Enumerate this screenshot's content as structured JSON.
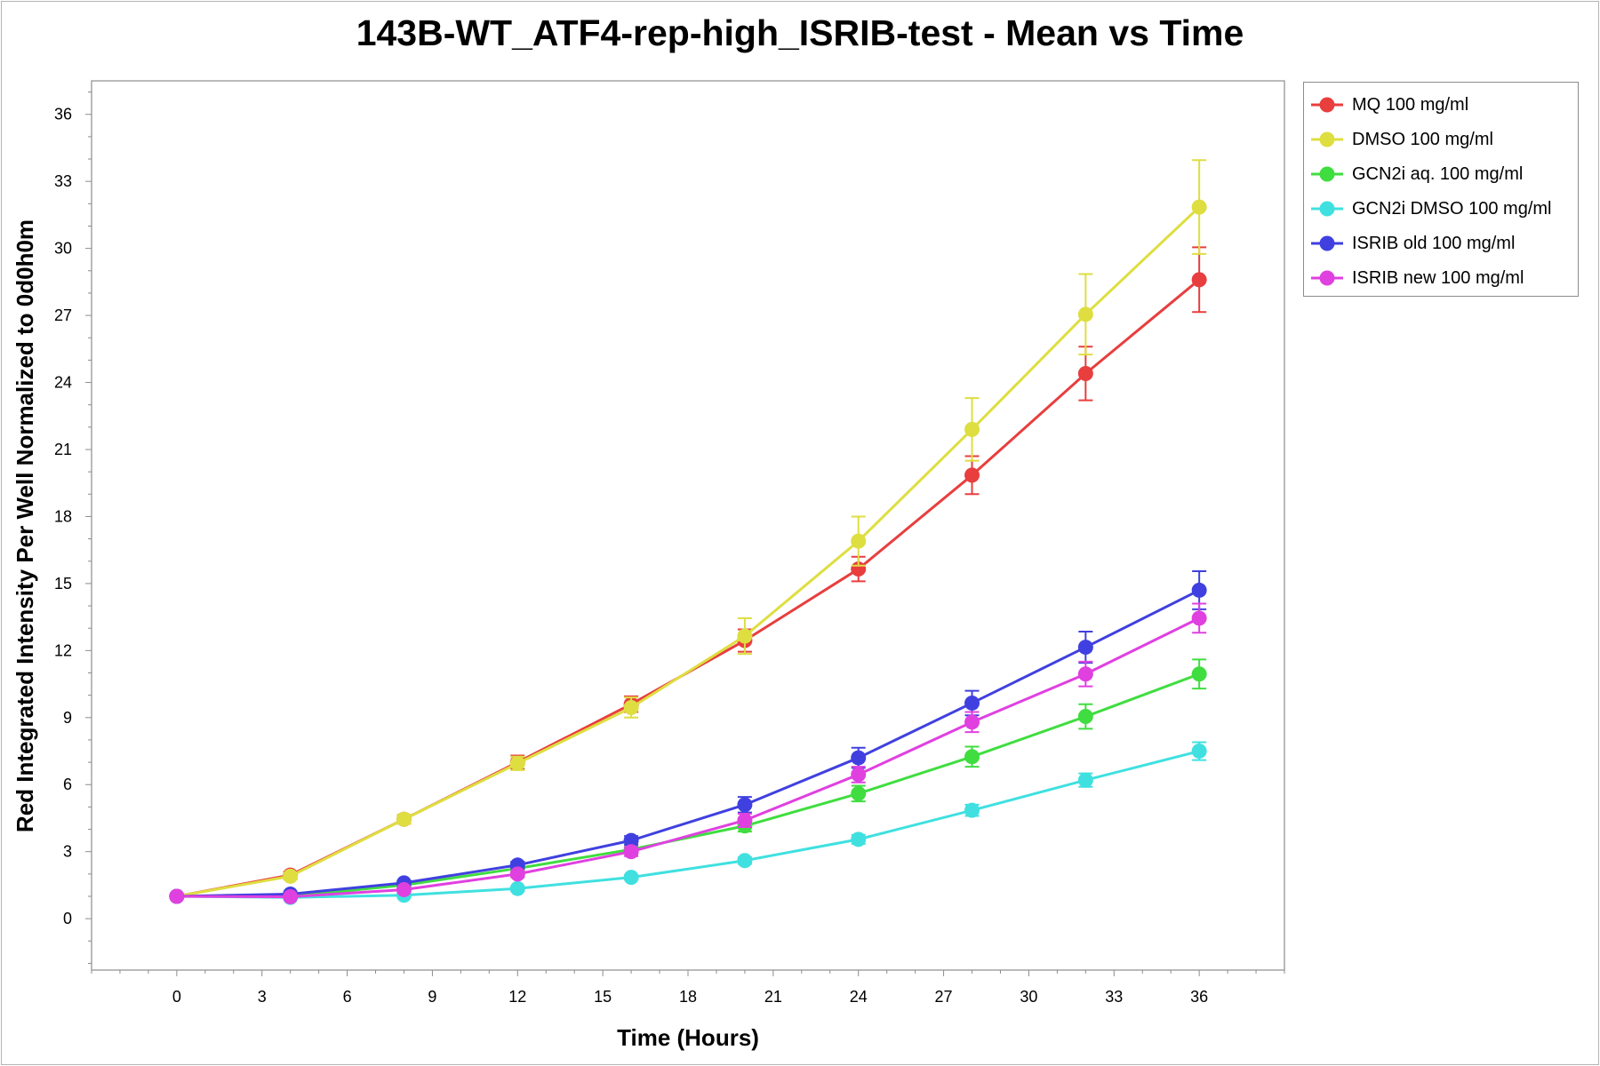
{
  "chart_data": {
    "type": "line",
    "title": "143B-WT_ATF4-rep-high_ISRIB-test - Mean vs Time",
    "xlabel": "Time (Hours)",
    "ylabel": "Red Integrated Intensity Per Well Normalized to 0d0h0m",
    "xlim": [
      -3,
      39
    ],
    "ylim": [
      -2.3,
      37.5
    ],
    "x_ticks": [
      0,
      3,
      6,
      9,
      12,
      15,
      18,
      21,
      24,
      27,
      30,
      33,
      36
    ],
    "y_ticks": [
      0,
      3,
      6,
      9,
      12,
      15,
      18,
      21,
      24,
      27,
      30,
      33,
      36
    ],
    "grid": false,
    "legend_position": "right",
    "x": [
      0,
      4,
      8,
      12,
      16,
      20,
      24,
      28,
      32,
      36
    ],
    "series": [
      {
        "name": "MQ 100 mg/ml",
        "color": "#e83e3e",
        "values": [
          1.0,
          1.95,
          4.45,
          7.0,
          9.6,
          12.45,
          15.65,
          19.85,
          24.4,
          28.6
        ],
        "errors": [
          0.05,
          0.15,
          0.2,
          0.3,
          0.35,
          0.5,
          0.55,
          0.85,
          1.2,
          1.45
        ]
      },
      {
        "name": "DMSO 100 mg/ml",
        "color": "#dede40",
        "values": [
          1.0,
          1.9,
          4.45,
          6.95,
          9.45,
          12.65,
          16.9,
          21.9,
          27.05,
          31.85
        ],
        "errors": [
          0.05,
          0.15,
          0.2,
          0.3,
          0.45,
          0.8,
          1.1,
          1.4,
          1.8,
          2.1
        ]
      },
      {
        "name": "GCN2i aq. 100 mg/ml",
        "color": "#40dd40",
        "values": [
          1.0,
          1.0,
          1.5,
          2.25,
          3.1,
          4.15,
          5.6,
          7.25,
          9.05,
          10.95
        ],
        "errors": [
          0.05,
          0.05,
          0.1,
          0.15,
          0.2,
          0.25,
          0.35,
          0.45,
          0.55,
          0.65
        ]
      },
      {
        "name": "GCN2i DMSO 100 mg/ml",
        "color": "#40e0e0",
        "values": [
          1.0,
          0.95,
          1.05,
          1.35,
          1.85,
          2.6,
          3.55,
          4.85,
          6.2,
          7.5
        ],
        "errors": [
          0.05,
          0.05,
          0.05,
          0.1,
          0.1,
          0.15,
          0.2,
          0.25,
          0.3,
          0.4
        ]
      },
      {
        "name": "ISRIB old 100 mg/ml",
        "color": "#4040e0",
        "values": [
          1.0,
          1.1,
          1.6,
          2.4,
          3.5,
          5.1,
          7.2,
          9.65,
          12.15,
          14.7
        ],
        "errors": [
          0.05,
          0.05,
          0.1,
          0.15,
          0.2,
          0.35,
          0.45,
          0.55,
          0.7,
          0.85
        ]
      },
      {
        "name": "ISRIB new 100 mg/ml",
        "color": "#e040e0",
        "values": [
          1.0,
          0.98,
          1.3,
          2.0,
          3.0,
          4.4,
          6.45,
          8.8,
          10.95,
          13.45
        ],
        "errors": [
          0.05,
          0.05,
          0.1,
          0.15,
          0.2,
          0.3,
          0.35,
          0.45,
          0.55,
          0.65
        ]
      }
    ]
  }
}
